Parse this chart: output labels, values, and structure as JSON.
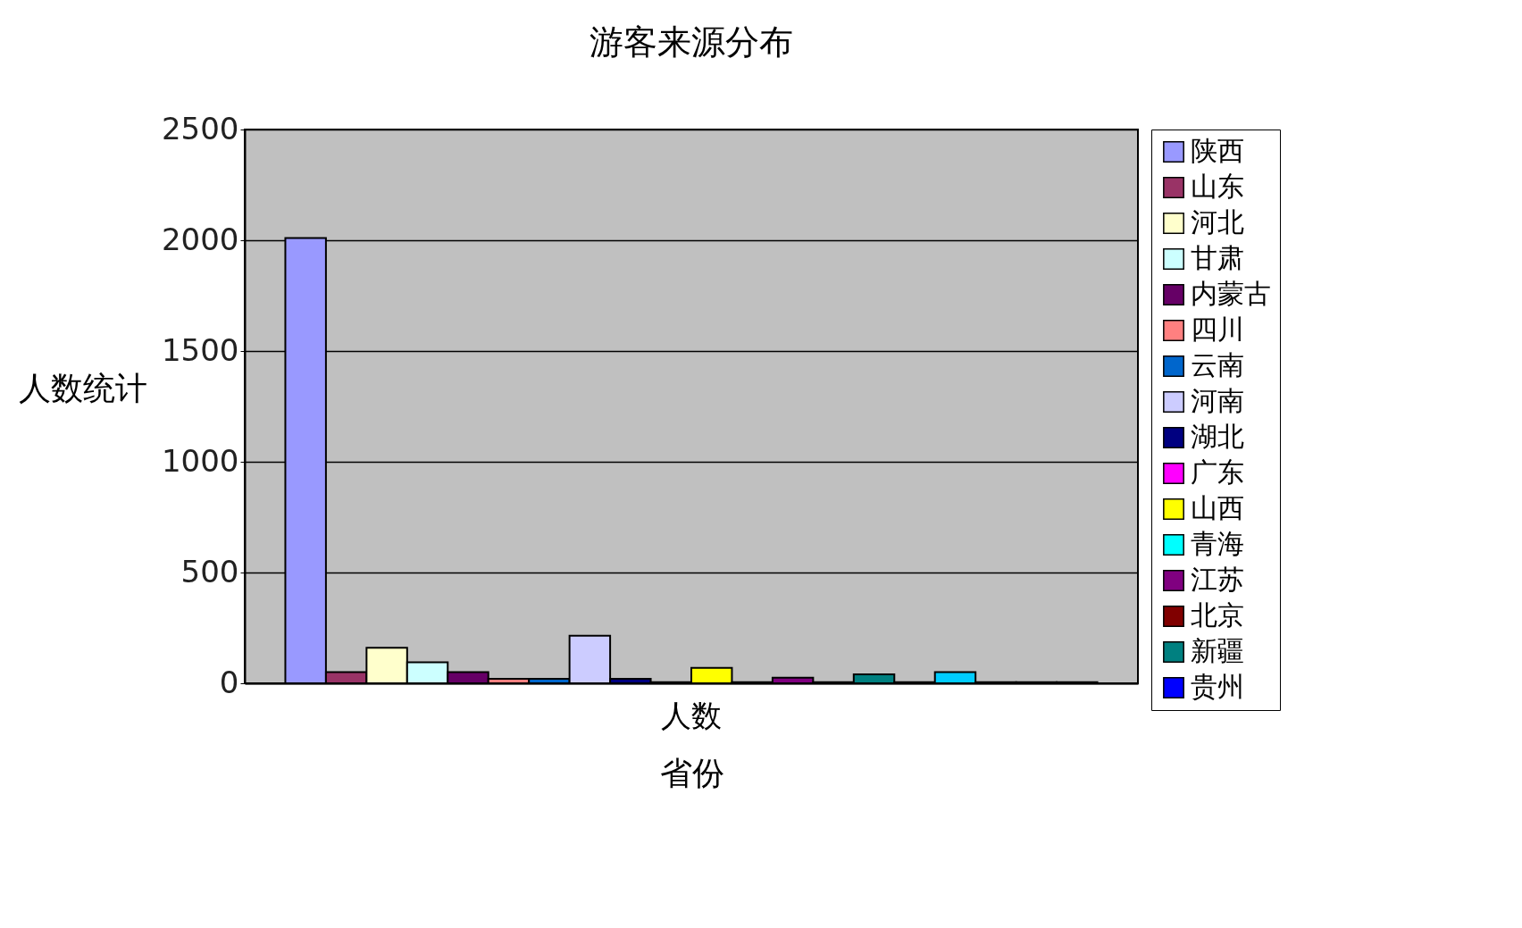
{
  "chart_data": {
    "type": "bar",
    "title": "游客来源分布",
    "xlabel": "省份",
    "ylabel": "人数统计",
    "categories": [
      "人数"
    ],
    "ylim": [
      0,
      2500
    ],
    "yticks": [
      0,
      500,
      1000,
      1500,
      2000,
      2500
    ],
    "grid": "y",
    "legend": "right",
    "series": [
      {
        "name": "陕西",
        "color": "#9999ff",
        "values": [
          2010
        ]
      },
      {
        "name": "山东",
        "color": "#993366",
        "values": [
          50
        ]
      },
      {
        "name": "河北",
        "color": "#ffffcc",
        "values": [
          160
        ]
      },
      {
        "name": "甘肃",
        "color": "#ccffff",
        "values": [
          95
        ]
      },
      {
        "name": "内蒙古",
        "color": "#660066",
        "values": [
          50
        ]
      },
      {
        "name": "四川",
        "color": "#ff8080",
        "values": [
          20
        ]
      },
      {
        "name": "云南",
        "color": "#0066cc",
        "values": [
          20
        ]
      },
      {
        "name": "河南",
        "color": "#ccccff",
        "values": [
          215
        ]
      },
      {
        "name": "湖北",
        "color": "#000080",
        "values": [
          20
        ]
      },
      {
        "name": "广东",
        "color": "#ff00ff",
        "values": [
          5
        ]
      },
      {
        "name": "山西",
        "color": "#ffff00",
        "values": [
          70
        ]
      },
      {
        "name": "青海",
        "color": "#00ffff",
        "values": [
          5
        ]
      },
      {
        "name": "江苏",
        "color": "#800080",
        "values": [
          25
        ]
      },
      {
        "name": "北京",
        "color": "#800000",
        "values": [
          5
        ]
      },
      {
        "name": "新疆",
        "color": "#008080",
        "values": [
          40
        ]
      },
      {
        "name": "贵州",
        "color": "#0000ff",
        "values": [
          5
        ]
      },
      {
        "color": "#00ccff",
        "values": [
          50
        ]
      },
      {
        "color": "#ccffff",
        "values": [
          5
        ]
      },
      {
        "color": "#ccffcc",
        "values": [
          5
        ]
      },
      {
        "color": "#ffff99",
        "values": [
          5
        ]
      }
    ]
  }
}
